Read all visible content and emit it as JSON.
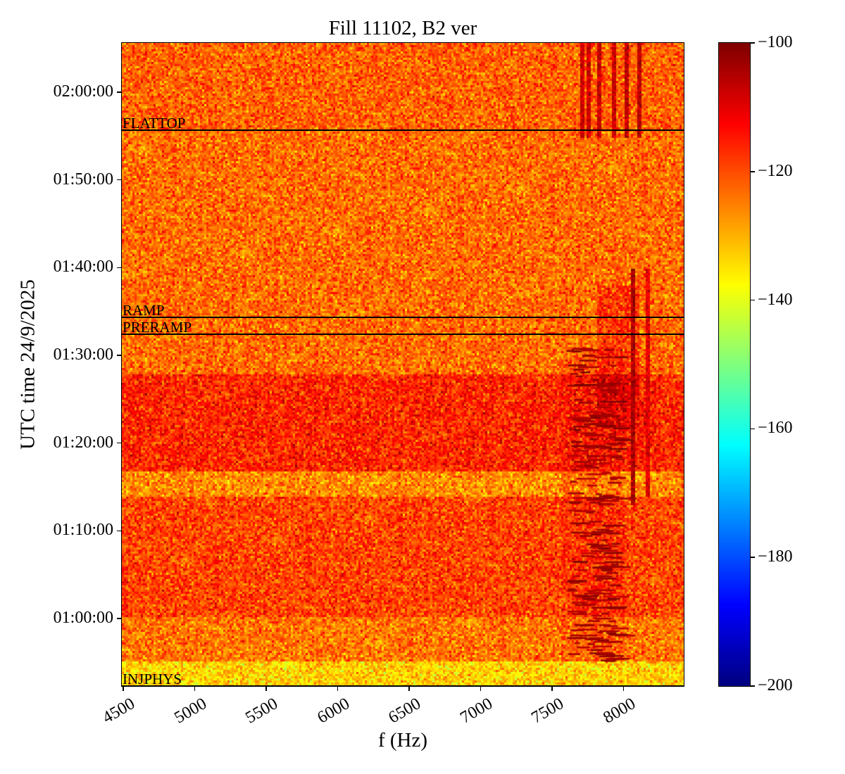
{
  "chart_data": {
    "type": "heatmap",
    "title": "Fill 11102, B2 ver",
    "xlabel": "f (Hz)",
    "ylabel": "UTC time 24/9/2025",
    "xlim": [
      4490,
      8420
    ],
    "ylim": [
      "00:52:18",
      "02:05:37"
    ],
    "x_ticks": [
      4500,
      5000,
      5500,
      6000,
      6500,
      7000,
      7500,
      8000
    ],
    "y_ticks": [
      "01:00:00",
      "01:10:00",
      "01:20:00",
      "01:30:00",
      "01:40:00",
      "01:50:00",
      "02:00:00"
    ],
    "colorbar": {
      "colormap": "jet",
      "range": [
        -200,
        -100
      ],
      "ticks": [
        -100,
        -120,
        -140,
        -160,
        -180,
        -200
      ]
    },
    "grid": false,
    "events": [
      {
        "label": "FLATTOP",
        "time": "01:55:40"
      },
      {
        "label": "RAMP",
        "time": "01:34:20"
      },
      {
        "label": "PRERAMP",
        "time": "01:32:25"
      },
      {
        "label": "INJPHYS",
        "time": "00:52:18"
      }
    ],
    "background_bands_dB": [
      {
        "from": "00:52:18",
        "to": "00:55:07",
        "level": -133
      },
      {
        "from": "00:55:07",
        "to": "01:00:20",
        "level": -124
      },
      {
        "from": "01:00:20",
        "to": "01:14:00",
        "level": -119
      },
      {
        "from": "01:14:00",
        "to": "01:17:00",
        "level": -126
      },
      {
        "from": "01:17:00",
        "to": "01:28:00",
        "level": -116
      },
      {
        "from": "01:28:00",
        "to": "01:55:40",
        "level": -123
      },
      {
        "from": "01:55:40",
        "to": "02:05:37",
        "level": -122
      }
    ],
    "features_dB": [
      {
        "kind": "streaks",
        "f": [
          7600,
          7950
        ],
        "from": "00:55:10",
        "to": "01:31:00",
        "level": -103
      },
      {
        "kind": "hotspot",
        "f": [
          7800,
          8100
        ],
        "from": "01:22:00",
        "to": "01:38:00",
        "level": -110
      },
      {
        "kind": "line",
        "f": 8060,
        "from": "01:13:00",
        "to": "01:40:00",
        "level": -104
      },
      {
        "kind": "line",
        "f": 8160,
        "from": "01:14:00",
        "to": "01:40:00",
        "level": -110
      },
      {
        "kind": "line",
        "f": 7700,
        "from": "01:55:00",
        "to": "02:05:37",
        "level": -108
      },
      {
        "kind": "line",
        "f": 7750,
        "from": "01:55:00",
        "to": "02:05:37",
        "level": -108
      },
      {
        "kind": "line",
        "f": 7820,
        "from": "01:55:00",
        "to": "02:05:37",
        "level": -108
      },
      {
        "kind": "line",
        "f": 7920,
        "from": "01:55:00",
        "to": "02:05:37",
        "level": -108
      },
      {
        "kind": "line",
        "f": 8020,
        "from": "01:55:00",
        "to": "02:05:37",
        "level": -106
      },
      {
        "kind": "line",
        "f": 8100,
        "from": "01:55:00",
        "to": "02:05:37",
        "level": -106
      }
    ],
    "noise_sd_dB": 5
  }
}
